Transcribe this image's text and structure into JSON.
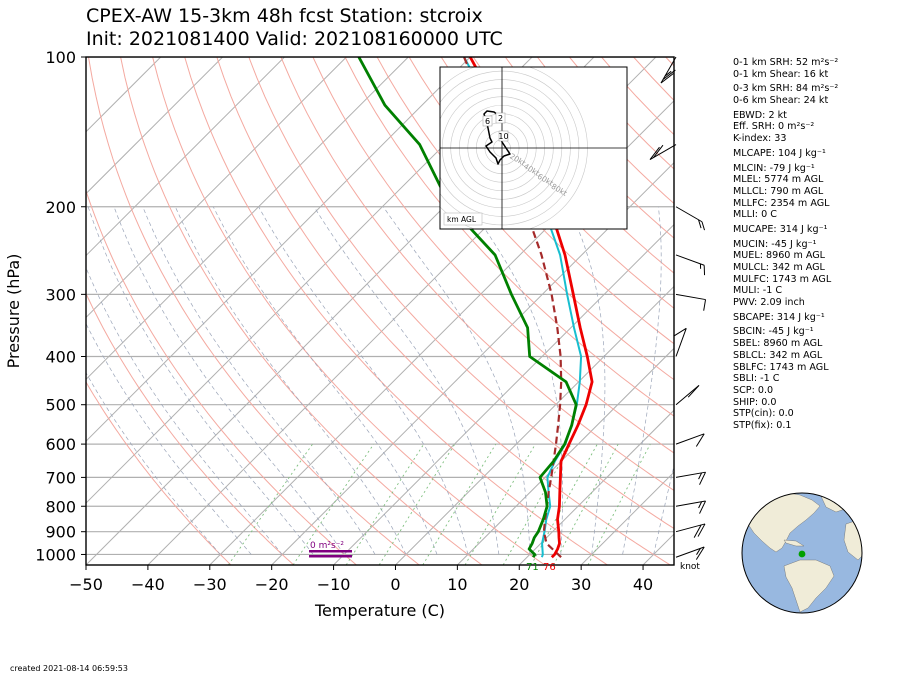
{
  "title": {
    "line1": "CPEX-AW 15-3km  48h fcst  Station: stcroix",
    "line2": "Init: 2021081400  Valid: 202108160000 UTC"
  },
  "created": "created 2021-08-14 06:59:53",
  "stats": [
    "0-1 km SRH: 52 m²s⁻²",
    "0-1 km Shear: 16 kt",
    "0-3 km SRH: 84 m²s⁻²",
    "0-6 km Shear: 24 kt",
    "EBWD: 2 kt",
    "Eff. SRH: 0 m²s⁻²",
    "K-index: 33",
    "MLCAPE: 104 J kg⁻¹",
    "MLCIN: -79 J kg⁻¹",
    "MLEL: 5774 m AGL",
    "MLLCL: 790 m AGL",
    "MLLFC: 2354 m AGL",
    "MLLI: 0 C",
    "MUCAPE: 314 J kg⁻¹",
    "MUCIN: -45 J kg⁻¹",
    "MUEL: 8960 m AGL",
    "MULCL: 342 m AGL",
    "MULFC: 1743 m AGL",
    "MULI: -1 C",
    "PWV: 2.09 inch",
    "SBCAPE: 314 J kg⁻¹",
    "SBCIN: -45 J kg⁻¹",
    "SBEL: 8960 m AGL",
    "SBLCL: 342 m AGL",
    "SBLFC: 1743 m AGL",
    "SBLI: -1 C",
    "SCP: 0.0",
    "SHIP: 0.0",
    "STP(cin): 0.0",
    "STP(fix): 0.1"
  ],
  "hodograph": {
    "ring_labels": [
      "20kt",
      "40kt",
      "60kt",
      "80kt"
    ],
    "height_labels": [
      "6",
      "2",
      "10"
    ],
    "corner_label": "km AGL"
  },
  "srh_label": "0 m²s⁻²",
  "barb_unit": "knot",
  "surface_labels": {
    "dewpoint": "71",
    "temperature": "76"
  },
  "colors": {
    "temperature": "#ee0000",
    "dewpoint": "#008000",
    "wetbulb": "#17becf",
    "parcel": "#a52a2a",
    "land": "#f0ecd8",
    "ocean": "#98b8e0",
    "station": "#00a000",
    "srh_bar": "#800080"
  },
  "chart_data": {
    "type": "line",
    "xlabel": "Temperature (C)",
    "ylabel": "Pressure (hPa)",
    "xlim": [
      -50,
      45
    ],
    "ylim": [
      1050,
      100
    ],
    "y_scale": "log",
    "skew": true,
    "x_ticks": [
      -50,
      -40,
      -30,
      -20,
      -10,
      0,
      10,
      20,
      30,
      40
    ],
    "y_ticks": [
      100,
      200,
      300,
      400,
      500,
      600,
      700,
      800,
      900,
      1000
    ],
    "series": [
      {
        "name": "temperature",
        "points": [
          [
            1013,
            24
          ],
          [
            1000,
            24
          ],
          [
            975,
            23.6
          ],
          [
            950,
            23
          ],
          [
            925,
            22
          ],
          [
            900,
            21
          ],
          [
            850,
            18.8
          ],
          [
            800,
            17
          ],
          [
            750,
            14.8
          ],
          [
            700,
            12.5
          ],
          [
            650,
            10
          ],
          [
            600,
            8.5
          ],
          [
            550,
            6.9
          ],
          [
            500,
            4.9
          ],
          [
            450,
            2.2
          ],
          [
            400,
            -2.7
          ],
          [
            350,
            -8.5
          ],
          [
            300,
            -15
          ],
          [
            250,
            -22.7
          ],
          [
            200,
            -33
          ],
          [
            150,
            -48
          ],
          [
            125,
            -58
          ],
          [
            100,
            -70
          ]
        ]
      },
      {
        "name": "dewpoint",
        "points": [
          [
            1013,
            21
          ],
          [
            1000,
            20.8
          ],
          [
            975,
            19
          ],
          [
            950,
            18.6
          ],
          [
            925,
            18
          ],
          [
            900,
            17.7
          ],
          [
            850,
            16.5
          ],
          [
            800,
            15
          ],
          [
            750,
            12.5
          ],
          [
            700,
            9.2
          ],
          [
            650,
            8.8
          ],
          [
            600,
            7.8
          ],
          [
            550,
            5.9
          ],
          [
            500,
            3.3
          ],
          [
            450,
            -2
          ],
          [
            400,
            -12
          ],
          [
            350,
            -17
          ],
          [
            300,
            -25
          ],
          [
            250,
            -34
          ],
          [
            200,
            -49
          ],
          [
            150,
            -64
          ],
          [
            125,
            -76
          ],
          [
            100,
            -88
          ]
        ]
      },
      {
        "name": "wetbulb",
        "points": [
          [
            1013,
            22.4
          ],
          [
            1000,
            22.1
          ],
          [
            950,
            20.2
          ],
          [
            900,
            18.7
          ],
          [
            850,
            17
          ],
          [
            800,
            15.5
          ],
          [
            750,
            13
          ],
          [
            700,
            10.4
          ],
          [
            650,
            9
          ],
          [
            600,
            7.9
          ],
          [
            550,
            5.9
          ],
          [
            500,
            3.4
          ],
          [
            450,
            0.2
          ],
          [
            400,
            -3.7
          ],
          [
            350,
            -9.5
          ],
          [
            300,
            -16
          ],
          [
            250,
            -23.5
          ],
          [
            200,
            -34
          ],
          [
            150,
            -49
          ],
          [
            125,
            -59
          ],
          [
            100,
            -71
          ]
        ]
      },
      {
        "name": "parcel",
        "points": [
          [
            1013,
            25.5
          ],
          [
            1000,
            24.6
          ],
          [
            950,
            20.9
          ],
          [
            900,
            18.6
          ],
          [
            850,
            16.8
          ],
          [
            800,
            15
          ],
          [
            750,
            13
          ],
          [
            700,
            11
          ],
          [
            650,
            8.8
          ],
          [
            600,
            6.4
          ],
          [
            550,
            3.7
          ],
          [
            500,
            0.7
          ],
          [
            450,
            -2.8
          ],
          [
            400,
            -7
          ],
          [
            350,
            -12.2
          ],
          [
            300,
            -18.5
          ],
          [
            250,
            -26.5
          ],
          [
            200,
            -37
          ],
          [
            150,
            -51
          ],
          [
            125,
            -60
          ],
          [
            100,
            -71
          ]
        ]
      }
    ],
    "wind_profile_kt": [
      {
        "p": 1013,
        "speed": 16,
        "dir": 110
      },
      {
        "p": 900,
        "speed": 18,
        "dir": 105
      },
      {
        "p": 800,
        "speed": 17,
        "dir": 100
      },
      {
        "p": 700,
        "speed": 15,
        "dir": 100
      },
      {
        "p": 600,
        "speed": 12,
        "dir": 110
      },
      {
        "p": 500,
        "speed": 10,
        "dir": 130
      },
      {
        "p": 400,
        "speed": 8,
        "dir": 160
      },
      {
        "p": 300,
        "speed": 10,
        "dir": 80
      },
      {
        "p": 250,
        "speed": 15,
        "dir": 70
      },
      {
        "p": 200,
        "speed": 18,
        "dir": 60
      },
      {
        "p": 150,
        "speed": 20,
        "dir": 300
      },
      {
        "p": 100,
        "speed": 25,
        "dir": 330
      }
    ]
  }
}
